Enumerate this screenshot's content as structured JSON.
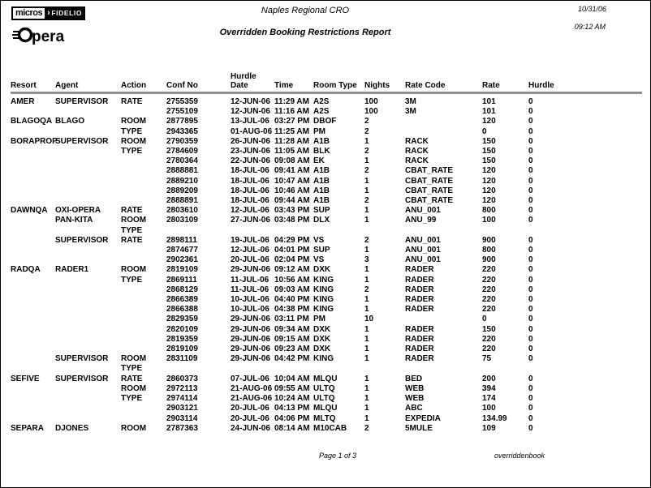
{
  "branding": {
    "micros": "micros",
    "arrow": "›",
    "fidelio": "FIDELIO",
    "opera_word": "pera"
  },
  "header": {
    "center_title": "Naples Regional CRO",
    "report_title": "Overridden Booking Restrictions Report",
    "date": "10/31/06",
    "time": "09:12 AM"
  },
  "table": {
    "hurdle_over_label": "Hurdle",
    "columns": [
      "Resort",
      "Agent",
      "Action",
      "Conf No",
      "Date",
      "Time",
      "Room Type",
      "Nights",
      "Rate Code",
      "Rate",
      "Hurdle"
    ],
    "rows": [
      [
        "AMER",
        "SUPERVISOR",
        "RATE",
        "2755359",
        "12-JUN-06",
        "11:29 AM",
        "A2S",
        "100",
        "3M",
        "101",
        "0"
      ],
      [
        "",
        "",
        "",
        "2755109",
        "12-JUN-06",
        "11:16 AM",
        "A2S",
        "100",
        "3M",
        "101",
        "0"
      ],
      [
        "BLAGOQA",
        "BLAGO",
        "ROOM",
        "2877895",
        "13-JUL-06",
        "03:27 PM",
        "DBOF",
        "2",
        "",
        "120",
        "0"
      ],
      [
        "",
        "",
        "TYPE",
        "2943365",
        "01-AUG-06",
        "11:25 AM",
        "PM",
        "2",
        "",
        "0",
        "0"
      ],
      [
        "BORAPROP",
        "SUPERVISOR",
        "ROOM",
        "2790359",
        "26-JUN-06",
        "11:28 AM",
        "A1B",
        "1",
        "RACK",
        "150",
        "0"
      ],
      [
        "",
        "",
        "TYPE",
        "2784609",
        "23-JUN-06",
        "11:05 AM",
        "BLK",
        "2",
        "RACK",
        "150",
        "0"
      ],
      [
        "",
        "",
        "",
        "2780364",
        "22-JUN-06",
        "09:08 AM",
        "EK",
        "1",
        "RACK",
        "150",
        "0"
      ],
      [
        "",
        "",
        "",
        "2888881",
        "18-JUL-06",
        "09:41 AM",
        "A1B",
        "2",
        "CBAT_RATE",
        "120",
        "0"
      ],
      [
        "",
        "",
        "",
        "2889210",
        "18-JUL-06",
        "10:47 AM",
        "A1B",
        "1",
        "CBAT_RATE",
        "120",
        "0"
      ],
      [
        "",
        "",
        "",
        "2889209",
        "18-JUL-06",
        "10:46 AM",
        "A1B",
        "1",
        "CBAT_RATE",
        "120",
        "0"
      ],
      [
        "",
        "",
        "",
        "2888891",
        "18-JUL-06",
        "09:44 AM",
        "A1B",
        "2",
        "CBAT_RATE",
        "120",
        "0"
      ],
      [
        "DAWNQA",
        "OXI-OPERA",
        "RATE",
        "2803610",
        "12-JUL-06",
        "03:43 PM",
        "SUP",
        "1",
        "ANU_001",
        "800",
        "0"
      ],
      [
        "",
        "PAN-KITA",
        "ROOM",
        "2803109",
        "27-JUN-06",
        "03:48 PM",
        "DLX",
        "1",
        "ANU_99",
        "100",
        "0"
      ],
      [
        "",
        "",
        "TYPE",
        "",
        "",
        "",
        "",
        "",
        "",
        "",
        ""
      ],
      [
        "",
        "SUPERVISOR",
        "RATE",
        "2898111",
        "19-JUL-06",
        "04:29 PM",
        "VS",
        "2",
        "ANU_001",
        "900",
        "0"
      ],
      [
        "",
        "",
        "",
        "2874677",
        "12-JUL-06",
        "04:01 PM",
        "SUP",
        "1",
        "ANU_001",
        "800",
        "0"
      ],
      [
        "",
        "",
        "",
        "2902361",
        "20-JUL-06",
        "02:04 PM",
        "VS",
        "3",
        "ANU_001",
        "900",
        "0"
      ],
      [
        "RADQA",
        "RADER1",
        "ROOM",
        "2819109",
        "29-JUN-06",
        "09:12 AM",
        "DXK",
        "1",
        "RADER",
        "220",
        "0"
      ],
      [
        "",
        "",
        "TYPE",
        "2869111",
        "11-JUL-06",
        "10:56 AM",
        "KING",
        "1",
        "RADER",
        "220",
        "0"
      ],
      [
        "",
        "",
        "",
        "2868129",
        "11-JUL-06",
        "09:03 AM",
        "KING",
        "2",
        "RADER",
        "220",
        "0"
      ],
      [
        "",
        "",
        "",
        "2866389",
        "10-JUL-06",
        "04:40 PM",
        "KING",
        "1",
        "RADER",
        "220",
        "0"
      ],
      [
        "",
        "",
        "",
        "2866388",
        "10-JUL-06",
        "04:38 PM",
        "KING",
        "1",
        "RADER",
        "220",
        "0"
      ],
      [
        "",
        "",
        "",
        "2829359",
        "29-JUN-06",
        "03:11 PM",
        "PM",
        "10",
        "",
        "0",
        "0"
      ],
      [
        "",
        "",
        "",
        "2820109",
        "29-JUN-06",
        "09:34 AM",
        "DXK",
        "1",
        "RADER",
        "150",
        "0"
      ],
      [
        "",
        "",
        "",
        "2819359",
        "29-JUN-06",
        "09:15 AM",
        "DXK",
        "1",
        "RADER",
        "220",
        "0"
      ],
      [
        "",
        "",
        "",
        "2819109",
        "29-JUN-06",
        "09:23 AM",
        "DXK",
        "1",
        "RADER",
        "220",
        "0"
      ],
      [
        "",
        "SUPERVISOR",
        "ROOM",
        "2831109",
        "29-JUN-06",
        "04:42 PM",
        "KING",
        "1",
        "RADER",
        "75",
        "0"
      ],
      [
        "",
        "",
        "TYPE",
        "",
        "",
        "",
        "",
        "",
        "",
        "",
        ""
      ],
      [
        "SEFIVE",
        "SUPERVISOR",
        "RATE",
        "2860373",
        "07-JUL-06",
        "10:04 AM",
        "MLQU",
        "1",
        "BED",
        "200",
        "0"
      ],
      [
        "",
        "",
        "ROOM",
        "2972113",
        "21-AUG-06",
        "09:55 AM",
        "ULTQ",
        "1",
        "WEB",
        "394",
        "0"
      ],
      [
        "",
        "",
        "TYPE",
        "2974114",
        "21-AUG-06",
        "10:24 AM",
        "ULTQ",
        "1",
        "WEB",
        "174",
        "0"
      ],
      [
        "",
        "",
        "",
        "2903121",
        "20-JUL-06",
        "04:13 PM",
        "MLQU",
        "1",
        "ABC",
        "100",
        "0"
      ],
      [
        "",
        "",
        "",
        "2903114",
        "20-JUL-06",
        "04:06 PM",
        "MLTQ",
        "1",
        "EXPEDIA",
        "134.99",
        "0"
      ],
      [
        "SEPARA",
        "DJONES",
        "ROOM",
        "2787363",
        "24-JUN-06",
        "08:14 AM",
        "M10CAB",
        "2",
        "5MULE",
        "109",
        "0"
      ]
    ]
  },
  "footer": {
    "page_label": "Page 1 of 3",
    "report_id": "overriddenbook"
  }
}
